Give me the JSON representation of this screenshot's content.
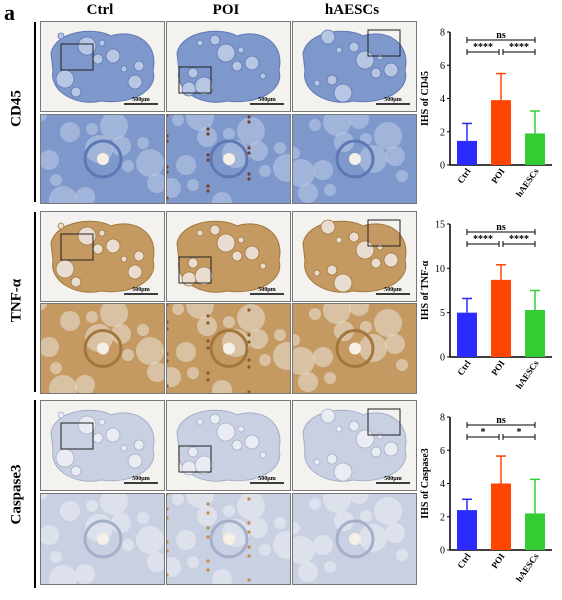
{
  "figure": {
    "panel_letter": "a",
    "columns": [
      "Ctrl",
      "POI",
      "hAESCs"
    ],
    "rows": [
      "CD45",
      "TNF-α",
      "Caspase3"
    ],
    "scale_bar": "500μm"
  },
  "colors": {
    "ctrl": "#2b2bff",
    "poi": "#ff4500",
    "haescs": "#33cc33",
    "stain_blue": "#9fb4d8",
    "stain_brown": "#c9a36a",
    "stain_caspase": "#c8cfe0"
  },
  "chart_data": [
    {
      "type": "bar",
      "categories": [
        "Ctrl",
        "POI",
        "hAESCs"
      ],
      "values": [
        1.45,
        3.9,
        1.9
      ],
      "errors": [
        1.05,
        1.6,
        1.35
      ],
      "ylabel": "IHS of CD45",
      "ylim": [
        0,
        8
      ],
      "yticks": [
        0,
        2,
        4,
        6,
        8
      ],
      "significance": [
        {
          "from": 0,
          "to": 2,
          "label": "ns"
        },
        {
          "from": 0,
          "to": 1,
          "label": "****"
        },
        {
          "from": 1,
          "to": 2,
          "label": "****"
        }
      ]
    },
    {
      "type": "bar",
      "categories": [
        "Ctrl",
        "POI",
        "hAESCs"
      ],
      "values": [
        5.0,
        8.7,
        5.3
      ],
      "errors": [
        1.6,
        1.7,
        2.2
      ],
      "ylabel": "IHS of TNF-α",
      "ylim": [
        0,
        15
      ],
      "yticks": [
        0,
        5,
        10,
        15
      ],
      "significance": [
        {
          "from": 0,
          "to": 2,
          "label": "ns"
        },
        {
          "from": 0,
          "to": 1,
          "label": "****"
        },
        {
          "from": 1,
          "to": 2,
          "label": "****"
        }
      ]
    },
    {
      "type": "bar",
      "categories": [
        "Ctrl",
        "POI",
        "hAESCs"
      ],
      "values": [
        2.4,
        4.0,
        2.2
      ],
      "errors": [
        0.65,
        1.65,
        2.05
      ],
      "ylabel": "IHS of Caspase3",
      "ylim": [
        0,
        8
      ],
      "yticks": [
        0,
        2,
        4,
        6,
        8
      ],
      "significance": [
        {
          "from": 0,
          "to": 2,
          "label": "ns"
        },
        {
          "from": 0,
          "to": 1,
          "label": "*"
        },
        {
          "from": 1,
          "to": 2,
          "label": "*"
        }
      ]
    }
  ]
}
